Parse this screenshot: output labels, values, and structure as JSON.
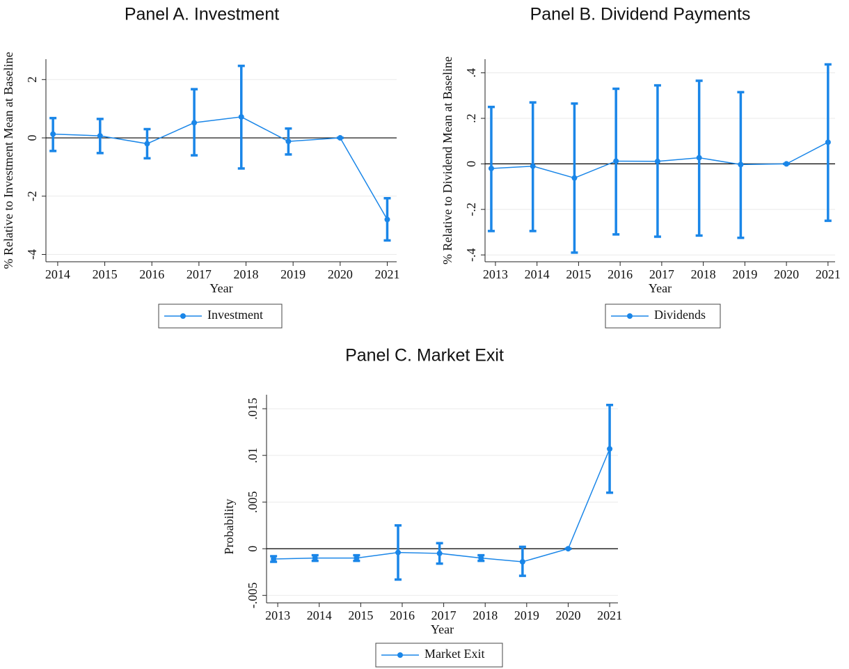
{
  "chart_data": [
    {
      "type": "line",
      "title": "Panel A. Investment",
      "x_label": "Year",
      "y_label": "% Relative to Investment Mean at Baseline",
      "xlim": [
        2013.75,
        2021.2
      ],
      "xticks": [
        2014,
        2015,
        2016,
        2017,
        2018,
        2019,
        2020,
        2021
      ],
      "ylim": [
        -4.25,
        2.7
      ],
      "yticks": [
        -4,
        -2,
        0,
        2
      ],
      "grid": true,
      "reference_line": 0,
      "legend": "bottom",
      "series": [
        {
          "name": "Investment",
          "color": "#1a86e8",
          "x": [
            2013.9,
            2014.9,
            2015.9,
            2016.9,
            2017.9,
            2018.9,
            2020,
            2021
          ],
          "values": [
            0.13,
            0.07,
            -0.2,
            0.52,
            0.72,
            -0.12,
            0,
            -2.8
          ],
          "ci_high": [
            0.68,
            0.65,
            0.3,
            1.67,
            2.47,
            0.32,
            0,
            -2.07
          ],
          "ci_low": [
            -0.45,
            -0.52,
            -0.7,
            -0.6,
            -1.05,
            -0.57,
            0,
            -3.52
          ]
        }
      ]
    },
    {
      "type": "line",
      "title": "Panel B. Dividend Payments",
      "x_label": "Year",
      "y_label": "% Relative to Dividend Mean at Baseline",
      "xlim": [
        2012.75,
        2021.17
      ],
      "xticks": [
        2013,
        2014,
        2015,
        2016,
        2017,
        2018,
        2019,
        2020,
        2021
      ],
      "ylim": [
        -0.43,
        0.46
      ],
      "yticks": [
        {
          "value": -0.4,
          "label": "-.4"
        },
        {
          "value": -0.2,
          "label": "-.2"
        },
        0,
        {
          "value": 0.2,
          "label": ".2"
        },
        {
          "value": 0.4,
          "label": ".4"
        }
      ],
      "grid": true,
      "reference_line": 0,
      "legend": "bottom",
      "series": [
        {
          "name": "Dividends",
          "color": "#1a86e8",
          "x": [
            2012.9,
            2013.9,
            2014.9,
            2015.9,
            2016.9,
            2017.9,
            2018.9,
            2020,
            2021
          ],
          "values": [
            -0.02,
            -0.01,
            -0.062,
            0.012,
            0.011,
            0.027,
            -0.003,
            0,
            0.095
          ],
          "ci_high": [
            0.25,
            0.27,
            0.265,
            0.33,
            0.345,
            0.365,
            0.315,
            0,
            0.437
          ],
          "ci_low": [
            -0.295,
            -0.295,
            -0.39,
            -0.31,
            -0.32,
            -0.315,
            -0.325,
            0,
            -0.25
          ]
        }
      ]
    },
    {
      "type": "line",
      "title": "Panel C. Market Exit",
      "x_label": "Year",
      "y_label": "Probability",
      "xlim": [
        2012.73,
        2021.2
      ],
      "xticks": [
        2013,
        2014,
        2015,
        2016,
        2017,
        2018,
        2019,
        2020,
        2021
      ],
      "ylim": [
        -0.0058,
        0.0165
      ],
      "yticks": [
        {
          "value": -0.005,
          "label": "-.005"
        },
        0,
        {
          "value": 0.005,
          "label": ".005"
        },
        {
          "value": 0.01,
          "label": ".01"
        },
        {
          "value": 0.015,
          "label": ".015"
        }
      ],
      "grid": true,
      "reference_line": 0,
      "legend": "bottom",
      "series": [
        {
          "name": "Market Exit",
          "color": "#1a86e8",
          "x": [
            2012.9,
            2013.9,
            2014.9,
            2015.9,
            2016.9,
            2017.9,
            2018.9,
            2020,
            2021
          ],
          "values": [
            -0.0011,
            -0.001,
            -0.001,
            -0.0004,
            -0.0005,
            -0.001,
            -0.0014,
            0,
            0.0107
          ],
          "ci_high": [
            -0.0008,
            -0.0007,
            -0.0007,
            0.0025,
            0.0006,
            -0.0007,
            0.0002,
            0,
            0.0154
          ],
          "ci_low": [
            -0.0014,
            -0.0013,
            -0.0013,
            -0.0033,
            -0.0016,
            -0.0013,
            -0.0029,
            0,
            0.006
          ]
        }
      ]
    }
  ]
}
